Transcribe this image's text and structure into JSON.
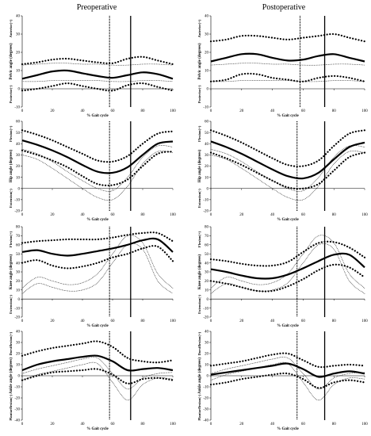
{
  "columns": [
    "Preoperative",
    "Postoperative"
  ],
  "chart_data": [
    {
      "type": "line",
      "column": 0,
      "row": 0,
      "xlabel": "% Gait cycle",
      "ylabel": "Pelvic angle (degrees)",
      "dir_top": "Anterior(+)",
      "dir_bottom": "Posterior(-)",
      "xlim": [
        0,
        100
      ],
      "ylim": [
        -10,
        40
      ],
      "yticks": [
        -10,
        0,
        10,
        20,
        30,
        40
      ],
      "xticks": [
        0,
        20,
        40,
        60,
        80,
        100
      ],
      "vline_dotted": 58,
      "vline_solid": 72,
      "x": [
        0,
        10,
        20,
        30,
        40,
        50,
        60,
        70,
        80,
        90,
        100
      ],
      "series": [
        {
          "style": "mean",
          "values": [
            5.5,
            7.5,
            9.5,
            10,
            8.5,
            7,
            6,
            7.5,
            9,
            8,
            5.5
          ]
        },
        {
          "style": "sd-upper",
          "values": [
            13.5,
            14.5,
            16,
            16.5,
            15.5,
            14.5,
            14,
            16.5,
            17.5,
            15.5,
            13.5
          ]
        },
        {
          "style": "sd-lower",
          "values": [
            -1,
            0,
            1.5,
            3,
            1.5,
            0,
            -1,
            2,
            3,
            1,
            -1
          ]
        },
        {
          "style": "normal-upper",
          "values": [
            13,
            13.5,
            14,
            14,
            13.5,
            13.5,
            13,
            13,
            13.5,
            13.5,
            13
          ]
        },
        {
          "style": "normal-lower",
          "values": [
            4,
            4,
            4.5,
            4.5,
            4.5,
            4.5,
            4,
            4,
            4.5,
            4.5,
            4
          ]
        }
      ]
    },
    {
      "type": "line",
      "column": 1,
      "row": 0,
      "xlabel": "% Gait cycle",
      "ylabel": "Pelvic angle (degrees)",
      "dir_top": "Anterior(+)",
      "dir_bottom": "Posterior(-)",
      "xlim": [
        0,
        100
      ],
      "ylim": [
        -10,
        40
      ],
      "yticks": [
        -10,
        0,
        10,
        20,
        30,
        40
      ],
      "xticks": [
        0,
        20,
        40,
        60,
        80,
        100
      ],
      "vline_dotted": 58,
      "vline_solid": 74,
      "x": [
        0,
        10,
        20,
        30,
        40,
        50,
        60,
        70,
        80,
        90,
        100
      ],
      "series": [
        {
          "style": "mean",
          "values": [
            15,
            17,
            19,
            19,
            17,
            15.5,
            16,
            18,
            19,
            17,
            15
          ]
        },
        {
          "style": "sd-upper",
          "values": [
            26,
            27,
            29,
            29,
            28,
            27,
            28,
            29,
            30,
            28,
            26
          ]
        },
        {
          "style": "sd-lower",
          "values": [
            4,
            5,
            8,
            8,
            6,
            5,
            4,
            6,
            7,
            6,
            4
          ]
        },
        {
          "style": "normal-upper",
          "values": [
            13,
            13.5,
            14,
            14,
            13.5,
            13.5,
            13,
            13,
            13.5,
            13.5,
            13
          ]
        },
        {
          "style": "normal-lower",
          "values": [
            4,
            4,
            4.5,
            4.5,
            4.5,
            4.5,
            4,
            4,
            4.5,
            4.5,
            4
          ]
        }
      ]
    },
    {
      "type": "line",
      "column": 0,
      "row": 1,
      "xlabel": "% Gait cycle",
      "ylabel": "Hip angle (degrees)",
      "dir_top": "Flexion(+)",
      "dir_bottom": "Extension(-)",
      "xlim": [
        0,
        100
      ],
      "ylim": [
        -20,
        60
      ],
      "yticks": [
        -20,
        -10,
        0,
        10,
        20,
        30,
        40,
        50,
        60
      ],
      "xticks": [
        0,
        20,
        40,
        60,
        80,
        100
      ],
      "vline_dotted": 58,
      "vline_solid": 72,
      "x": [
        0,
        10,
        20,
        30,
        40,
        50,
        60,
        70,
        80,
        90,
        100
      ],
      "series": [
        {
          "style": "mean",
          "values": [
            43,
            39,
            34,
            28,
            21,
            15,
            14,
            19,
            30,
            40,
            42
          ]
        },
        {
          "style": "sd-upper",
          "values": [
            52,
            48,
            43,
            37,
            31,
            25,
            24,
            29,
            40,
            49,
            51
          ]
        },
        {
          "style": "sd-lower",
          "values": [
            34,
            30,
            25,
            19,
            11,
            4,
            3,
            8,
            20,
            31,
            33
          ]
        },
        {
          "style": "normal-upper",
          "values": [
            35,
            31,
            24,
            15,
            7,
            0,
            -2,
            10,
            28,
            38,
            37
          ]
        },
        {
          "style": "normal-lower",
          "values": [
            30,
            26,
            18,
            9,
            0,
            -8,
            -10,
            2,
            22,
            33,
            32
          ]
        }
      ]
    },
    {
      "type": "line",
      "column": 1,
      "row": 1,
      "xlabel": "% Gait cycle",
      "ylabel": "Hip angle (degrees)",
      "dir_top": "Flexion(+)",
      "dir_bottom": "Extension(-)",
      "xlim": [
        0,
        100
      ],
      "ylim": [
        -20,
        60
      ],
      "yticks": [
        -20,
        -10,
        0,
        10,
        20,
        30,
        40,
        50,
        60
      ],
      "xticks": [
        0,
        20,
        40,
        60,
        80,
        100
      ],
      "vline_dotted": 56,
      "vline_solid": 74,
      "x": [
        0,
        10,
        20,
        30,
        40,
        50,
        60,
        70,
        80,
        90,
        100
      ],
      "series": [
        {
          "style": "mean",
          "values": [
            42,
            37,
            31,
            24,
            17,
            11,
            9,
            14,
            26,
            37,
            41
          ]
        },
        {
          "style": "sd-upper",
          "values": [
            52,
            47,
            41,
            34,
            27,
            21,
            20,
            25,
            38,
            49,
            52
          ]
        },
        {
          "style": "sd-lower",
          "values": [
            32,
            27,
            21,
            14,
            7,
            1,
            0,
            4,
            16,
            28,
            32
          ]
        },
        {
          "style": "normal-upper",
          "values": [
            35,
            31,
            24,
            15,
            7,
            0,
            -2,
            10,
            28,
            38,
            37
          ]
        },
        {
          "style": "normal-lower",
          "values": [
            30,
            26,
            18,
            9,
            0,
            -8,
            -10,
            2,
            22,
            33,
            32
          ]
        }
      ]
    },
    {
      "type": "line",
      "column": 0,
      "row": 2,
      "xlabel": "% Gait cycle",
      "ylabel": "Knee angle (degrees)",
      "dir_top": "Flexion(+)",
      "dir_bottom": "Extension(-)",
      "xlim": [
        0,
        100
      ],
      "ylim": [
        -20,
        80
      ],
      "yticks": [
        -20,
        -10,
        0,
        10,
        20,
        30,
        40,
        50,
        60,
        70,
        80
      ],
      "xticks": [
        0,
        20,
        40,
        60,
        80,
        100
      ],
      "vline_dotted": 58,
      "vline_solid": 72,
      "x": [
        0,
        10,
        20,
        30,
        40,
        50,
        60,
        70,
        80,
        90,
        100
      ],
      "series": [
        {
          "style": "mean",
          "values": [
            52,
            54,
            50,
            48,
            50,
            53,
            56,
            60,
            65,
            66,
            52
          ]
        },
        {
          "style": "sd-upper",
          "values": [
            62,
            64,
            65,
            66,
            66,
            66,
            68,
            71,
            73,
            73,
            64
          ]
        },
        {
          "style": "sd-lower",
          "values": [
            40,
            43,
            37,
            34,
            36,
            40,
            46,
            50,
            56,
            58,
            42
          ]
        },
        {
          "style": "normal-upper",
          "values": [
            12,
            24,
            20,
            16,
            18,
            28,
            50,
            70,
            62,
            28,
            12
          ]
        },
        {
          "style": "normal-lower",
          "values": [
            6,
            17,
            13,
            9,
            10,
            18,
            40,
            60,
            55,
            20,
            6
          ]
        }
      ]
    },
    {
      "type": "line",
      "column": 1,
      "row": 2,
      "xlabel": "% Gait cycle",
      "ylabel": "Knee angle (degrees)",
      "dir_top": "Flexion(+)",
      "dir_bottom": "Extension(-)",
      "xlim": [
        0,
        100
      ],
      "ylim": [
        -20,
        80
      ],
      "yticks": [
        -20,
        -10,
        0,
        10,
        20,
        30,
        40,
        50,
        60,
        70,
        80
      ],
      "xticks": [
        0,
        20,
        40,
        60,
        80,
        100
      ],
      "vline_dotted": 56,
      "vline_solid": 74,
      "x": [
        0,
        10,
        20,
        30,
        40,
        50,
        60,
        70,
        80,
        90,
        100
      ],
      "series": [
        {
          "style": "mean",
          "values": [
            33,
            30,
            26,
            23,
            23,
            27,
            34,
            42,
            49,
            49,
            35
          ]
        },
        {
          "style": "sd-upper",
          "values": [
            44,
            42,
            39,
            37,
            37,
            41,
            52,
            62,
            63,
            57,
            46
          ]
        },
        {
          "style": "sd-lower",
          "values": [
            20,
            17,
            13,
            9,
            9,
            14,
            22,
            32,
            38,
            35,
            24
          ]
        },
        {
          "style": "normal-upper",
          "values": [
            12,
            24,
            20,
            16,
            18,
            28,
            50,
            70,
            62,
            28,
            12
          ]
        },
        {
          "style": "normal-lower",
          "values": [
            6,
            17,
            13,
            9,
            10,
            18,
            40,
            60,
            55,
            20,
            6
          ]
        }
      ]
    },
    {
      "type": "line",
      "column": 0,
      "row": 3,
      "xlabel": "% Gait cycle",
      "ylabel": "Ankle angle (degrees)",
      "dir_top": "Dorsiflexion(+)",
      "dir_bottom": "Plantarflexion(-)",
      "xlim": [
        0,
        100
      ],
      "ylim": [
        -40,
        40
      ],
      "yticks": [
        -40,
        -30,
        -20,
        -10,
        0,
        10,
        20,
        30,
        40
      ],
      "xticks": [
        0,
        20,
        40,
        60,
        80,
        100
      ],
      "vline_dotted": 58,
      "vline_solid": 72,
      "x": [
        0,
        10,
        20,
        30,
        40,
        50,
        60,
        70,
        80,
        90,
        100
      ],
      "series": [
        {
          "style": "mean",
          "values": [
            5,
            10,
            13,
            15,
            17,
            18,
            13,
            5,
            6,
            7,
            5
          ]
        },
        {
          "style": "sd-upper",
          "values": [
            18,
            22,
            25,
            27,
            29,
            31,
            26,
            16,
            13,
            12,
            14
          ]
        },
        {
          "style": "sd-lower",
          "values": [
            -4,
            0,
            3,
            4,
            5,
            6,
            1,
            -7,
            -3,
            -2,
            -4
          ]
        },
        {
          "style": "normal-upper",
          "values": [
            2,
            6,
            9,
            12,
            15,
            16,
            2,
            -12,
            -2,
            2,
            3
          ]
        },
        {
          "style": "normal-lower",
          "values": [
            -4,
            1,
            4,
            7,
            10,
            11,
            -6,
            -22,
            -8,
            -2,
            -3
          ]
        }
      ]
    },
    {
      "type": "line",
      "column": 1,
      "row": 3,
      "xlabel": "% Gait cycle",
      "ylabel": "Ankle angle (degrees)",
      "dir_top": "Dorsiflexion(+)",
      "dir_bottom": "Plantarflexion(-)",
      "xlim": [
        0,
        100
      ],
      "ylim": [
        -40,
        40
      ],
      "yticks": [
        -40,
        -30,
        -20,
        -10,
        0,
        10,
        20,
        30,
        40
      ],
      "xticks": [
        0,
        20,
        40,
        60,
        80,
        100
      ],
      "vline_dotted": 56,
      "vline_solid": 74,
      "x": [
        0,
        10,
        20,
        30,
        40,
        50,
        60,
        70,
        80,
        90,
        100
      ],
      "series": [
        {
          "style": "mean",
          "values": [
            1,
            3,
            5,
            7,
            9,
            11,
            6,
            -1,
            2,
            4,
            2
          ]
        },
        {
          "style": "sd-upper",
          "values": [
            9,
            11,
            13,
            16,
            19,
            20,
            14,
            8,
            9,
            10,
            9
          ]
        },
        {
          "style": "sd-lower",
          "values": [
            -8,
            -6,
            -3,
            -1,
            1,
            2,
            -3,
            -11,
            -6,
            -4,
            -6
          ]
        },
        {
          "style": "normal-upper",
          "values": [
            2,
            6,
            9,
            12,
            15,
            16,
            2,
            -12,
            -2,
            2,
            3
          ]
        },
        {
          "style": "normal-lower",
          "values": [
            -4,
            1,
            4,
            7,
            10,
            11,
            -6,
            -22,
            -8,
            -2,
            -3
          ]
        }
      ]
    }
  ]
}
